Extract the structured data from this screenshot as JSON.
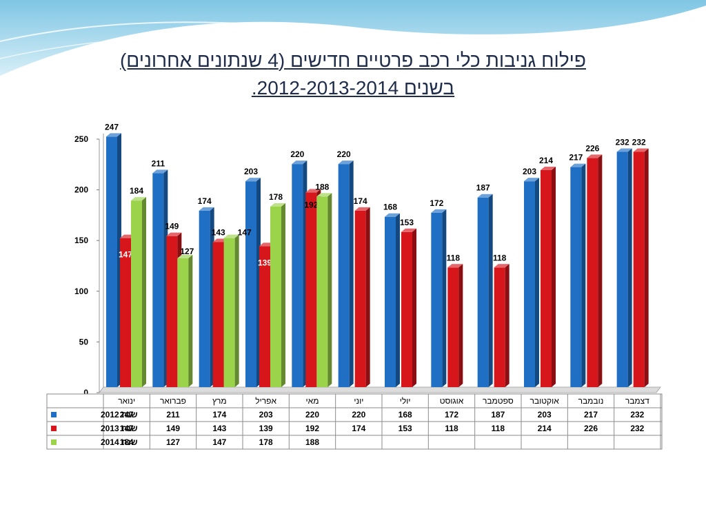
{
  "slide": {
    "title_line1": "פילוח גניבות כלי רכב פרטיים חדישים (4 שנתונים אחרונים)",
    "title_line2": "בשנים 2012-2013-2014."
  },
  "chart_data": {
    "type": "bar",
    "title": "",
    "xlabel": "",
    "ylabel": "",
    "ylim": [
      0,
      250
    ],
    "yticks": [
      0,
      50,
      100,
      150,
      200,
      250
    ],
    "grid": false,
    "legend": "table-left",
    "data_table": true,
    "categories": [
      "ינואר",
      "פברואר",
      "מרץ",
      "אפריל",
      "מאי",
      "יוני",
      "יולי",
      "אוגוסט",
      "ספטמבר",
      "אוקטובר",
      "נובמבר",
      "דצמבר"
    ],
    "series": [
      {
        "name": "שנת 2012",
        "color": "#1f6fc5",
        "values": [
          247,
          211,
          174,
          203,
          220,
          220,
          168,
          172,
          187,
          203,
          217,
          232
        ]
      },
      {
        "name": "שנת 2013",
        "color": "#d6161b",
        "values": [
          147,
          149,
          143,
          139,
          192,
          174,
          153,
          118,
          118,
          214,
          226,
          232
        ]
      },
      {
        "name": "שנת 2014",
        "color": "#9bd34a",
        "values": [
          184,
          127,
          147,
          178,
          188,
          null,
          null,
          null,
          null,
          null,
          null,
          null
        ]
      }
    ]
  }
}
